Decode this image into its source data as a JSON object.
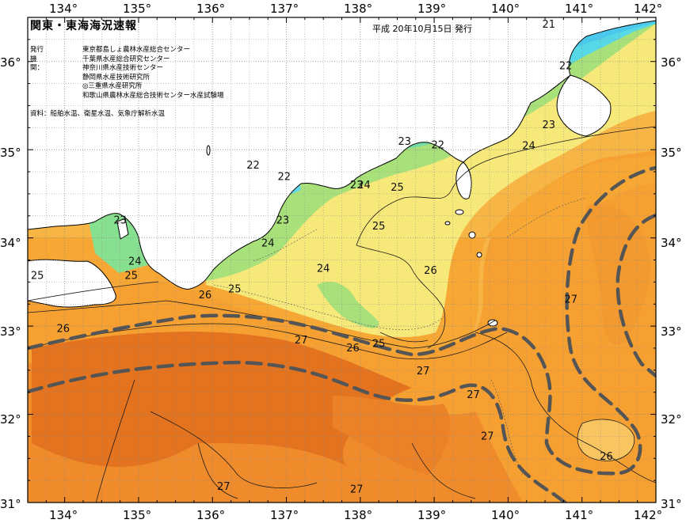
{
  "map": {
    "title": "関東・東海海況速報",
    "date_text": "平成 20年10月15日 発行",
    "issuer_label": "発行機関：",
    "issuers": [
      "東京都島しょ農林水産総合センター",
      "千葉県水産総合研究センター",
      "神奈川県水産技術センター",
      "静岡県水産技術研究所",
      "◎三重県水産研究所",
      "和歌山県農林水産総合技術センター水産試験場"
    ],
    "source_text": "資料：船舶水温、衛星水温、気象庁解析水温",
    "lon_labels": [
      "134°",
      "135°",
      "136°",
      "137°",
      "138°",
      "139°",
      "140°",
      "141°",
      "142°"
    ],
    "lat_labels": [
      "36°",
      "35°",
      "34°",
      "33°",
      "32°",
      "31°"
    ],
    "lon_range": [
      133.5,
      142.0
    ],
    "lat_range": [
      31.0,
      36.5
    ],
    "isotherm_labels": [
      {
        "text": "21",
        "lon": 140.55,
        "lat": 36.42
      },
      {
        "text": "22",
        "lon": 140.78,
        "lat": 35.95
      },
      {
        "text": "23",
        "lon": 140.55,
        "lat": 35.28
      },
      {
        "text": "24",
        "lon": 140.28,
        "lat": 35.04
      },
      {
        "text": "22",
        "lon": 139.05,
        "lat": 35.05
      },
      {
        "text": "23",
        "lon": 138.6,
        "lat": 35.09
      },
      {
        "text": "22",
        "lon": 136.55,
        "lat": 34.82
      },
      {
        "text": "22",
        "lon": 136.97,
        "lat": 34.69
      },
      {
        "text": "23",
        "lon": 137.95,
        "lat": 34.6
      },
      {
        "text": "24",
        "lon": 138.05,
        "lat": 34.6
      },
      {
        "text": "25",
        "lon": 138.5,
        "lat": 34.57
      },
      {
        "text": "25",
        "lon": 138.25,
        "lat": 34.13
      },
      {
        "text": "23",
        "lon": 136.95,
        "lat": 34.2
      },
      {
        "text": "24",
        "lon": 136.75,
        "lat": 33.94
      },
      {
        "text": "24",
        "lon": 137.5,
        "lat": 33.65
      },
      {
        "text": "26",
        "lon": 138.95,
        "lat": 33.63
      },
      {
        "text": "23",
        "lon": 134.75,
        "lat": 34.2
      },
      {
        "text": "24",
        "lon": 134.95,
        "lat": 33.73
      },
      {
        "text": "25",
        "lon": 134.9,
        "lat": 33.57
      },
      {
        "text": "25",
        "lon": 133.63,
        "lat": 33.57
      },
      {
        "text": "26",
        "lon": 135.9,
        "lat": 33.35
      },
      {
        "text": "25",
        "lon": 136.3,
        "lat": 33.42
      },
      {
        "text": "26",
        "lon": 133.98,
        "lat": 32.97
      },
      {
        "text": "27",
        "lon": 137.2,
        "lat": 32.84
      },
      {
        "text": "26",
        "lon": 137.9,
        "lat": 32.75
      },
      {
        "text": "25",
        "lon": 138.25,
        "lat": 32.8
      },
      {
        "text": "27",
        "lon": 140.85,
        "lat": 33.3
      },
      {
        "text": "27",
        "lon": 138.85,
        "lat": 32.49
      },
      {
        "text": "27",
        "lon": 139.53,
        "lat": 32.22
      },
      {
        "text": "27",
        "lon": 139.72,
        "lat": 31.75
      },
      {
        "text": "26",
        "lon": 141.33,
        "lat": 31.52
      },
      {
        "text": "27",
        "lon": 136.15,
        "lat": 31.18
      },
      {
        "text": "27",
        "lon": 137.95,
        "lat": 31.15
      }
    ]
  }
}
